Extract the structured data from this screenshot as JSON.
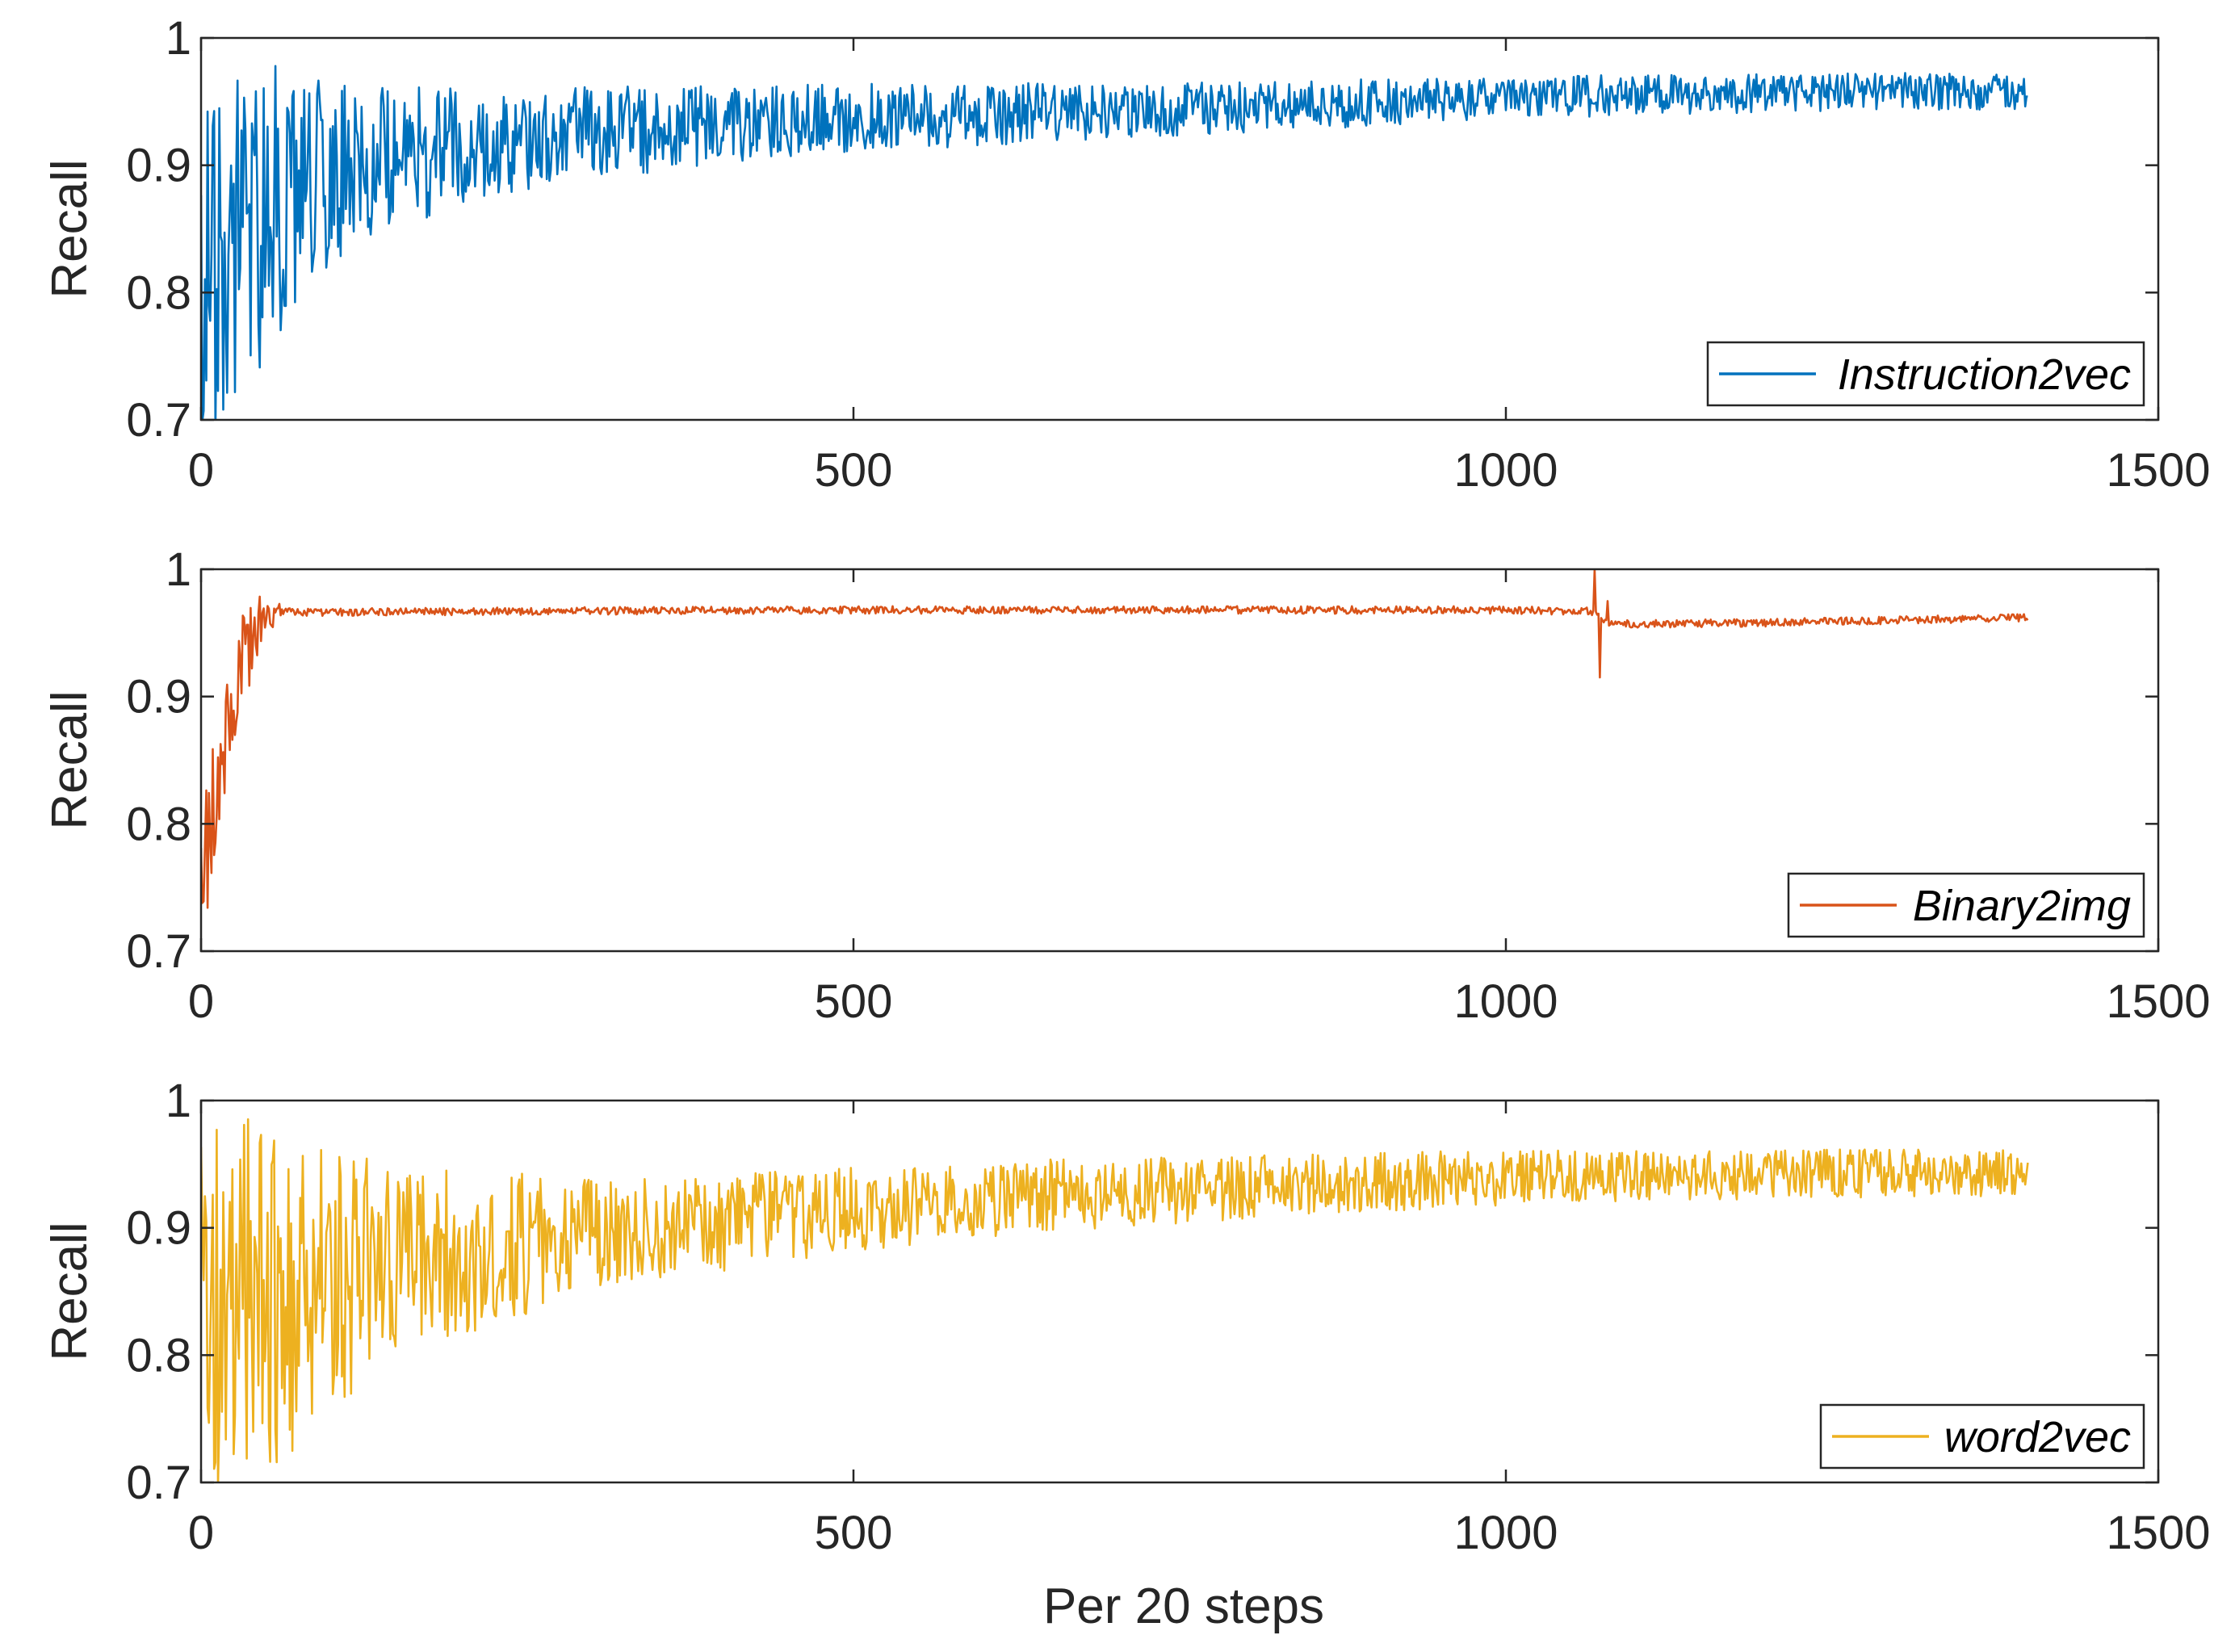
{
  "chart_data": [
    {
      "type": "line",
      "title": "",
      "xlabel": "",
      "ylabel": "Recall",
      "xlim": [
        0,
        1500
      ],
      "ylim": [
        0.7,
        1.0
      ],
      "x_ticks": [
        "0",
        "500",
        "1000",
        "1500"
      ],
      "y_ticks": [
        "0.7",
        "0.8",
        "0.9",
        "1"
      ],
      "grid": false,
      "legend_position": "bottom-right",
      "series": [
        {
          "name": "Instruction2vec",
          "color": "#0072BD",
          "points_count": 1400,
          "trend": [
            [
              0,
              0.8
            ],
            [
              10,
              0.82
            ],
            [
              25,
              0.84
            ],
            [
              50,
              0.86
            ],
            [
              75,
              0.88
            ],
            [
              100,
              0.895
            ],
            [
              150,
              0.905
            ],
            [
              200,
              0.915
            ],
            [
              300,
              0.925
            ],
            [
              400,
              0.932
            ],
            [
              500,
              0.937
            ],
            [
              600,
              0.94
            ],
            [
              700,
              0.943
            ],
            [
              800,
              0.946
            ],
            [
              900,
              0.949
            ],
            [
              1000,
              0.952
            ],
            [
              1100,
              0.955
            ],
            [
              1200,
              0.957
            ],
            [
              1300,
              0.958
            ],
            [
              1400,
              0.958
            ]
          ],
          "noise": [
            [
              0,
              0.14
            ],
            [
              50,
              0.12
            ],
            [
              100,
              0.07
            ],
            [
              200,
              0.045
            ],
            [
              400,
              0.03
            ],
            [
              700,
              0.022
            ],
            [
              1000,
              0.017
            ],
            [
              1400,
              0.014
            ]
          ],
          "spikes": []
        },
        {
          "name": "Binary2img",
          "color": "#D95319",
          "points_count": 1400,
          "trend": [
            [
              0,
              0.74
            ],
            [
              5,
              0.78
            ],
            [
              10,
              0.83
            ],
            [
              20,
              0.88
            ],
            [
              30,
              0.92
            ],
            [
              40,
              0.95
            ],
            [
              50,
              0.963
            ],
            [
              60,
              0.966
            ],
            [
              200,
              0.967
            ],
            [
              500,
              0.968
            ],
            [
              800,
              0.968
            ],
            [
              1000,
              0.968
            ],
            [
              1065,
              0.967
            ],
            [
              1080,
              0.957
            ],
            [
              1100,
              0.957
            ],
            [
              1200,
              0.958
            ],
            [
              1300,
              0.96
            ],
            [
              1400,
              0.962
            ]
          ],
          "noise": [
            [
              0,
              0.06
            ],
            [
              20,
              0.05
            ],
            [
              40,
              0.03
            ],
            [
              55,
              0.01
            ],
            [
              70,
              0.003
            ],
            [
              1400,
              0.003
            ]
          ],
          "spikes": [
            [
              1068,
              1.0
            ],
            [
              1072,
              0.915
            ],
            [
              1078,
              0.975
            ]
          ]
        },
        {
          "name": "word2vec",
          "color": "#EDB120",
          "points_count": 1400,
          "trend": [
            [
              0,
              0.84
            ],
            [
              25,
              0.845
            ],
            [
              50,
              0.85
            ],
            [
              100,
              0.86
            ],
            [
              150,
              0.87
            ],
            [
              200,
              0.88
            ],
            [
              300,
              0.895
            ],
            [
              400,
              0.905
            ],
            [
              500,
              0.915
            ],
            [
              600,
              0.922
            ],
            [
              700,
              0.928
            ],
            [
              800,
              0.932
            ],
            [
              900,
              0.936
            ],
            [
              1000,
              0.939
            ],
            [
              1100,
              0.941
            ],
            [
              1200,
              0.942
            ],
            [
              1300,
              0.943
            ],
            [
              1400,
              0.943
            ]
          ],
          "noise": [
            [
              0,
              0.15
            ],
            [
              60,
              0.14
            ],
            [
              100,
              0.1
            ],
            [
              200,
              0.065
            ],
            [
              300,
              0.045
            ],
            [
              500,
              0.033
            ],
            [
              800,
              0.025
            ],
            [
              1100,
              0.02
            ],
            [
              1400,
              0.018
            ]
          ],
          "spikes": []
        }
      ]
    }
  ],
  "figure": {
    "xlabel": "Per 20 steps",
    "panel_ylabel": "Recall"
  }
}
